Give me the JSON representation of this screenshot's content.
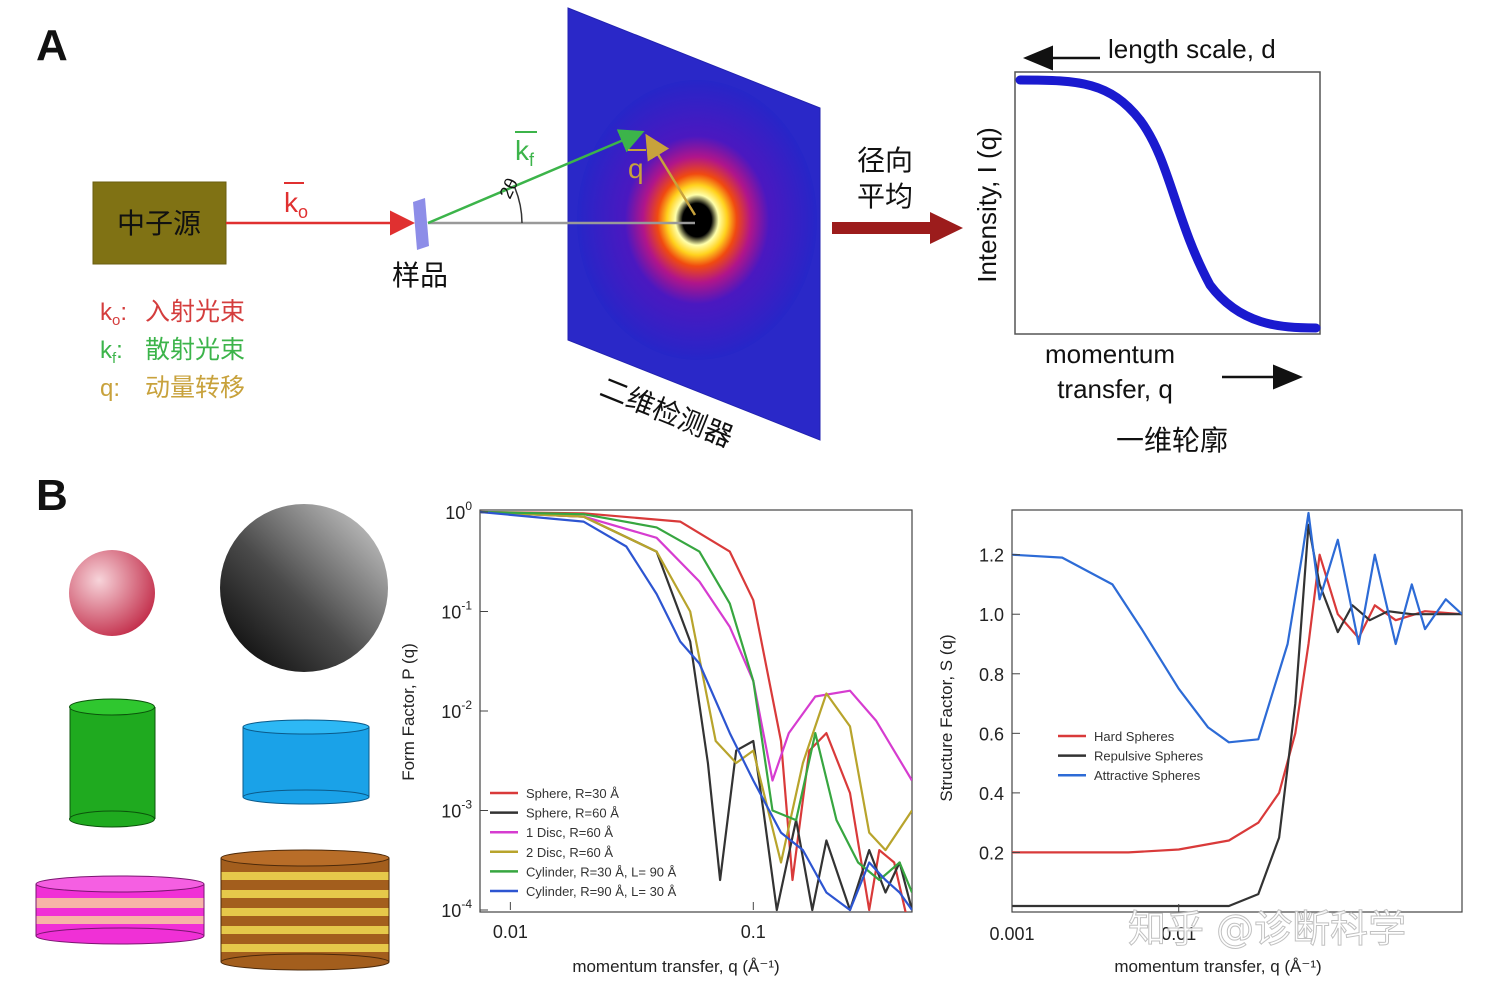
{
  "panel_a": {
    "letter": "A",
    "source_label": "中子源",
    "sample_label": "样品",
    "incident_vector": "k",
    "incident_sub": "o",
    "scattered_vector": "k",
    "scattered_sub": "f",
    "transfer_vector": "q",
    "angle_label": "2θ",
    "detector_label": "二维检测器",
    "radial_average_label_line1": "径向",
    "radial_average_label_line2": "平均",
    "legend": [
      {
        "symbol": "k",
        "sub": "o",
        "text": "入射光束",
        "color": "#d43d3d"
      },
      {
        "symbol": "k",
        "sub": "f",
        "text": "散射光束",
        "color": "#3cb44a"
      },
      {
        "symbol": "q",
        "sub": "",
        "text": "动量转移",
        "color": "#c8a23c"
      }
    ],
    "profile": {
      "length_scale_label": "length scale, d",
      "ylabel": "Intensity, I (q)",
      "xlabel_line1": "momentum",
      "xlabel_line2": "transfer, q",
      "caption": "一维轮廓"
    }
  },
  "panel_b": {
    "letter": "B",
    "shapes": [
      "small-sphere",
      "large-sphere",
      "cylinder",
      "disc",
      "stacked-discs-2",
      "stacked-discs-many"
    ]
  },
  "chart_data": [
    {
      "type": "line",
      "title": "",
      "xlabel": "momentum transfer, q (Å⁻¹)",
      "ylabel": "Form Factor, P (q)",
      "xscale": "log",
      "yscale": "log",
      "xlim": [
        0.0075,
        0.45
      ],
      "ylim": [
        0.0001,
        1
      ],
      "x_ticks": [
        "0.01",
        "0.1"
      ],
      "y_ticks": [
        "10^0",
        "10^-1",
        "10^-2",
        "10^-3",
        "10^-4"
      ],
      "legend_placement": "bottom-left",
      "series": [
        {
          "name": "Sphere, R=30 Å",
          "color": "#d93a3a",
          "x": [
            0.0075,
            0.02,
            0.05,
            0.08,
            0.1,
            0.13,
            0.145,
            0.17,
            0.2,
            0.25,
            0.3,
            0.33,
            0.38,
            0.45
          ],
          "y": [
            1,
            0.97,
            0.8,
            0.4,
            0.13,
            0.005,
            0.0002,
            0.004,
            0.006,
            0.0015,
            0.0001,
            0.0004,
            0.0003,
            5e-05
          ]
        },
        {
          "name": "Sphere, R=60 Å",
          "color": "#333333",
          "x": [
            0.0075,
            0.02,
            0.04,
            0.055,
            0.065,
            0.073,
            0.085,
            0.1,
            0.11,
            0.125,
            0.15,
            0.175,
            0.2,
            0.25,
            0.3,
            0.35,
            0.4,
            0.45
          ],
          "y": [
            1,
            0.9,
            0.4,
            0.05,
            0.003,
            0.0002,
            0.004,
            0.005,
            0.001,
            0.0001,
            0.0008,
            0.0001,
            0.0005,
            0.0001,
            0.0004,
            0.00015,
            0.0003,
            0.0001
          ]
        },
        {
          "name": "1 Disc, R=60 Å",
          "color": "#d63cd0",
          "x": [
            0.0075,
            0.02,
            0.04,
            0.06,
            0.08,
            0.1,
            0.12,
            0.14,
            0.18,
            0.25,
            0.32,
            0.45
          ],
          "y": [
            1,
            0.9,
            0.55,
            0.2,
            0.07,
            0.02,
            0.002,
            0.006,
            0.014,
            0.016,
            0.008,
            0.002
          ]
        },
        {
          "name": "2 Disc, R=60 Å",
          "color": "#b8a42c",
          "x": [
            0.0075,
            0.02,
            0.04,
            0.055,
            0.07,
            0.085,
            0.1,
            0.13,
            0.16,
            0.2,
            0.25,
            0.3,
            0.35,
            0.45
          ],
          "y": [
            1,
            0.9,
            0.4,
            0.1,
            0.005,
            0.003,
            0.004,
            0.0003,
            0.003,
            0.015,
            0.007,
            0.0006,
            0.0004,
            0.001
          ]
        },
        {
          "name": "Cylinder, R=30 Å, L= 90 Å",
          "color": "#37a640",
          "x": [
            0.0075,
            0.02,
            0.04,
            0.06,
            0.08,
            0.1,
            0.12,
            0.15,
            0.18,
            0.22,
            0.27,
            0.33,
            0.4,
            0.45
          ],
          "y": [
            1,
            0.95,
            0.7,
            0.4,
            0.12,
            0.02,
            0.001,
            0.0008,
            0.006,
            0.0008,
            0.0003,
            0.0002,
            0.0003,
            0.00015
          ]
        },
        {
          "name": "Cylinder, R=90 Å, L= 30 Å",
          "color": "#2d55d1",
          "x": [
            0.0075,
            0.02,
            0.03,
            0.04,
            0.05,
            0.06,
            0.08,
            0.1,
            0.13,
            0.16,
            0.2,
            0.25,
            0.3,
            0.35,
            0.4,
            0.45
          ],
          "y": [
            1,
            0.8,
            0.45,
            0.15,
            0.05,
            0.03,
            0.006,
            0.002,
            0.0006,
            0.0004,
            0.00015,
            0.0001,
            0.0003,
            0.0002,
            0.00015,
            0.0001
          ]
        }
      ]
    },
    {
      "type": "line",
      "title": "",
      "xlabel": "momentum transfer, q (Å⁻¹)",
      "ylabel": "Structure Factor, S (q)",
      "xscale": "log",
      "yscale": "linear",
      "xlim": [
        0.001,
        0.5
      ],
      "ylim": [
        0.0,
        1.35
      ],
      "x_ticks": [
        "0.001",
        "0.01"
      ],
      "y_ticks": [
        "0.2",
        "0.4",
        "0.6",
        "0.8",
        "1.0",
        "1.2"
      ],
      "legend_placement": "center-left",
      "series": [
        {
          "name": "Hard Spheres",
          "color": "#d93a3a",
          "x": [
            0.001,
            0.005,
            0.01,
            0.02,
            0.03,
            0.04,
            0.05,
            0.06,
            0.07,
            0.09,
            0.12,
            0.15,
            0.2,
            0.3,
            0.5
          ],
          "y": [
            0.2,
            0.2,
            0.21,
            0.24,
            0.3,
            0.4,
            0.6,
            0.9,
            1.2,
            1.0,
            0.92,
            1.03,
            0.98,
            1.01,
            1.0
          ]
        },
        {
          "name": "Repulsive Spheres",
          "color": "#333333",
          "x": [
            0.001,
            0.01,
            0.02,
            0.03,
            0.04,
            0.05,
            0.06,
            0.07,
            0.09,
            0.11,
            0.14,
            0.18,
            0.25,
            0.5
          ],
          "y": [
            0.02,
            0.02,
            0.02,
            0.06,
            0.25,
            0.7,
            1.3,
            1.1,
            0.94,
            1.03,
            0.98,
            1.01,
            1.0,
            1.0
          ]
        },
        {
          "name": "Attractive Spheres",
          "color": "#2d6bd6",
          "x": [
            0.001,
            0.002,
            0.004,
            0.006,
            0.01,
            0.015,
            0.02,
            0.03,
            0.045,
            0.055,
            0.06,
            0.07,
            0.09,
            0.12,
            0.15,
            0.2,
            0.25,
            0.3,
            0.4,
            0.5
          ],
          "y": [
            1.2,
            1.19,
            1.1,
            0.95,
            0.75,
            0.62,
            0.57,
            0.58,
            0.9,
            1.2,
            1.34,
            1.05,
            1.25,
            0.9,
            1.2,
            0.9,
            1.1,
            0.95,
            1.05,
            1.0
          ]
        }
      ]
    }
  ],
  "watermark": "知乎 @诊断科学"
}
